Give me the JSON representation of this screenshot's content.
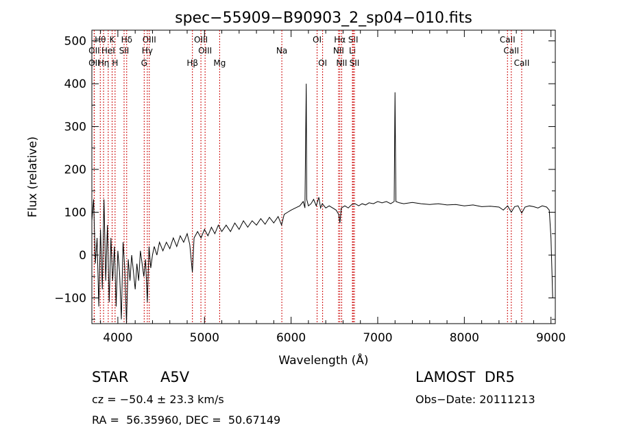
{
  "chart_data": {
    "type": "line",
    "title": "spec−55909−B90903_2_sp04−010.fits",
    "xlabel": "Wavelength (Å)",
    "ylabel": "Flux (relative)",
    "xlim": [
      3700,
      9050
    ],
    "ylim": [
      -160,
      525
    ],
    "xticks": [
      4000,
      5000,
      6000,
      7000,
      8000,
      9000
    ],
    "yticks": [
      -100,
      0,
      100,
      200,
      300,
      400,
      500
    ],
    "line_color": "#000000",
    "marker_color": "#cc0000",
    "series": [
      {
        "values": [
          [
            3700,
            80
          ],
          [
            3720,
            130
          ],
          [
            3740,
            -20
          ],
          [
            3760,
            40
          ],
          [
            3780,
            -120
          ],
          [
            3800,
            60
          ],
          [
            3820,
            -80
          ],
          [
            3840,
            130
          ],
          [
            3860,
            -60
          ],
          [
            3880,
            70
          ],
          [
            3900,
            -110
          ],
          [
            3920,
            40
          ],
          [
            3940,
            -60
          ],
          [
            3960,
            20
          ],
          [
            3980,
            -120
          ],
          [
            4000,
            10
          ],
          [
            4020,
            -40
          ],
          [
            4040,
            -150
          ],
          [
            4060,
            30
          ],
          [
            4080,
            -30
          ],
          [
            4100,
            -160
          ],
          [
            4120,
            -10
          ],
          [
            4140,
            -60
          ],
          [
            4160,
            0
          ],
          [
            4180,
            -40
          ],
          [
            4200,
            -80
          ],
          [
            4220,
            -20
          ],
          [
            4240,
            -60
          ],
          [
            4260,
            10
          ],
          [
            4280,
            -20
          ],
          [
            4300,
            -50
          ],
          [
            4320,
            -10
          ],
          [
            4340,
            -110
          ],
          [
            4360,
            20
          ],
          [
            4380,
            -30
          ],
          [
            4400,
            0
          ],
          [
            4420,
            20
          ],
          [
            4450,
            0
          ],
          [
            4480,
            30
          ],
          [
            4520,
            10
          ],
          [
            4560,
            30
          ],
          [
            4600,
            15
          ],
          [
            4640,
            40
          ],
          [
            4680,
            20
          ],
          [
            4720,
            45
          ],
          [
            4760,
            30
          ],
          [
            4800,
            50
          ],
          [
            4830,
            25
          ],
          [
            4860,
            -40
          ],
          [
            4880,
            40
          ],
          [
            4920,
            55
          ],
          [
            4960,
            40
          ],
          [
            5000,
            60
          ],
          [
            5040,
            45
          ],
          [
            5080,
            65
          ],
          [
            5120,
            50
          ],
          [
            5160,
            70
          ],
          [
            5200,
            55
          ],
          [
            5250,
            70
          ],
          [
            5300,
            55
          ],
          [
            5350,
            75
          ],
          [
            5400,
            60
          ],
          [
            5450,
            80
          ],
          [
            5500,
            65
          ],
          [
            5550,
            80
          ],
          [
            5600,
            70
          ],
          [
            5650,
            85
          ],
          [
            5700,
            72
          ],
          [
            5750,
            88
          ],
          [
            5800,
            75
          ],
          [
            5850,
            90
          ],
          [
            5890,
            70
          ],
          [
            5920,
            95
          ],
          [
            5960,
            100
          ],
          [
            6000,
            105
          ],
          [
            6050,
            110
          ],
          [
            6100,
            115
          ],
          [
            6140,
            125
          ],
          [
            6160,
            110
          ],
          [
            6175,
            400
          ],
          [
            6180,
            130
          ],
          [
            6200,
            115
          ],
          [
            6230,
            120
          ],
          [
            6260,
            130
          ],
          [
            6290,
            115
          ],
          [
            6320,
            135
          ],
          [
            6340,
            110
          ],
          [
            6360,
            120
          ],
          [
            6400,
            110
          ],
          [
            6440,
            115
          ],
          [
            6480,
            110
          ],
          [
            6520,
            105
          ],
          [
            6550,
            95
          ],
          [
            6563,
            75
          ],
          [
            6580,
            110
          ],
          [
            6620,
            115
          ],
          [
            6660,
            110
          ],
          [
            6700,
            118
          ],
          [
            6740,
            120
          ],
          [
            6780,
            115
          ],
          [
            6820,
            120
          ],
          [
            6860,
            117
          ],
          [
            6900,
            122
          ],
          [
            6950,
            120
          ],
          [
            7000,
            125
          ],
          [
            7050,
            122
          ],
          [
            7100,
            125
          ],
          [
            7150,
            120
          ],
          [
            7190,
            125
          ],
          [
            7200,
            380
          ],
          [
            7210,
            125
          ],
          [
            7250,
            122
          ],
          [
            7300,
            120
          ],
          [
            7400,
            123
          ],
          [
            7500,
            120
          ],
          [
            7600,
            118
          ],
          [
            7700,
            120
          ],
          [
            7800,
            117
          ],
          [
            7900,
            118
          ],
          [
            8000,
            115
          ],
          [
            8100,
            117
          ],
          [
            8200,
            113
          ],
          [
            8300,
            114
          ],
          [
            8400,
            112
          ],
          [
            8450,
            105
          ],
          [
            8500,
            115
          ],
          [
            8542,
            100
          ],
          [
            8580,
            113
          ],
          [
            8620,
            115
          ],
          [
            8662,
            98
          ],
          [
            8700,
            112
          ],
          [
            8750,
            115
          ],
          [
            8800,
            113
          ],
          [
            8850,
            110
          ],
          [
            8900,
            115
          ],
          [
            8950,
            112
          ],
          [
            8980,
            105
          ],
          [
            9000,
            40
          ],
          [
            9020,
            -100
          ]
        ]
      }
    ],
    "line_markers": [
      {
        "label": "Hθ",
        "x": 3797,
        "row": 1
      },
      {
        "label": "OII",
        "x": 3727,
        "row": 2
      },
      {
        "label": "OII",
        "x": 3727,
        "row": 3
      },
      {
        "label": "K",
        "x": 3934,
        "row": 1
      },
      {
        "label": "HeI",
        "x": 3889,
        "row": 2
      },
      {
        "label": "Hη",
        "x": 3835,
        "row": 3
      },
      {
        "label": "H",
        "x": 3968,
        "row": 3
      },
      {
        "label": "Hδ",
        "x": 4102,
        "row": 1
      },
      {
        "label": "SII",
        "x": 4072,
        "row": 2
      },
      {
        "label": "OIII",
        "x": 4363,
        "row": 1
      },
      {
        "label": "Hγ",
        "x": 4340,
        "row": 2
      },
      {
        "label": "G",
        "x": 4304,
        "row": 3
      },
      {
        "label": "OIII",
        "x": 4959,
        "row": 1
      },
      {
        "label": "OIII",
        "x": 5007,
        "row": 2
      },
      {
        "label": "Hβ",
        "x": 4861,
        "row": 3
      },
      {
        "label": "Mg",
        "x": 5175,
        "row": 3
      },
      {
        "label": "Na",
        "x": 5893,
        "row": 2
      },
      {
        "label": "OI",
        "x": 6300,
        "row": 1
      },
      {
        "label": "OI",
        "x": 6364,
        "row": 3
      },
      {
        "label": "Hα",
        "x": 6563,
        "row": 1
      },
      {
        "label": "SII",
        "x": 6717,
        "row": 1
      },
      {
        "label": "NII",
        "x": 6548,
        "row": 2
      },
      {
        "label": "Li",
        "x": 6708,
        "row": 2
      },
      {
        "label": "NII",
        "x": 6584,
        "row": 3
      },
      {
        "label": "SII",
        "x": 6731,
        "row": 3
      },
      {
        "label": "CaII",
        "x": 8498,
        "row": 1
      },
      {
        "label": "CaII",
        "x": 8542,
        "row": 2
      },
      {
        "label": "CaII",
        "x": 8662,
        "row": 3
      }
    ]
  },
  "info": {
    "object_class": "STAR",
    "subclass": "A5V",
    "survey": "LAMOST  DR5",
    "cz": "cz = −50.4 ± 23.3 km/s",
    "obs_date": "Obs−Date: 20111213",
    "coords": "RA =  56.35960, DEC =  50.67149"
  }
}
